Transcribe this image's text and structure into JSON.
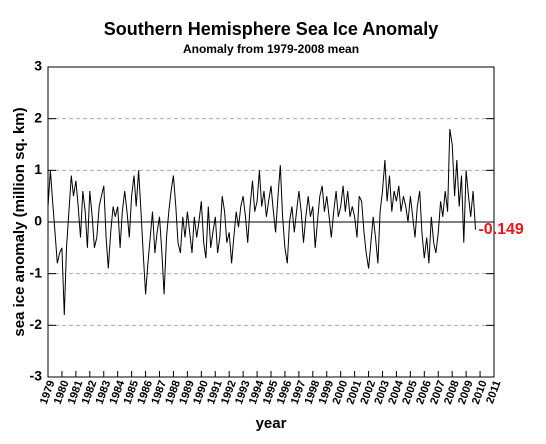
{
  "chart_data": {
    "type": "line",
    "title": "Southern Hemisphere Sea Ice Anomaly",
    "subtitle": "Anomaly from 1979-2008 mean",
    "x_label": "year",
    "y_label": "sea ice anomaly (million sq. km)",
    "annotation": "-0.149",
    "annotation_color": "#e8161b",
    "xlim": [
      1979,
      2011
    ],
    "xticks": [
      1979,
      1980,
      1981,
      1982,
      1983,
      1984,
      1985,
      1986,
      1987,
      1988,
      1989,
      1990,
      1991,
      1992,
      1993,
      1994,
      1995,
      1996,
      1997,
      1998,
      1999,
      2000,
      2001,
      2002,
      2003,
      2004,
      2005,
      2006,
      2007,
      2008,
      2009,
      2010,
      2011
    ],
    "ylim": [
      -3,
      3
    ],
    "yticks": [
      -3,
      -2,
      -1,
      0,
      1,
      2,
      3
    ],
    "grid": true,
    "series": [
      {
        "color": "#000000",
        "x": [
          1979.0,
          1979.17,
          1979.33,
          1979.5,
          1979.67,
          1979.83,
          1980.0,
          1980.17,
          1980.33,
          1980.5,
          1980.67,
          1980.83,
          1981.0,
          1981.17,
          1981.33,
          1981.5,
          1981.67,
          1981.83,
          1982.0,
          1982.17,
          1982.33,
          1982.5,
          1982.67,
          1982.83,
          1983.0,
          1983.17,
          1983.33,
          1983.5,
          1983.67,
          1983.83,
          1984.0,
          1984.17,
          1984.33,
          1984.5,
          1984.67,
          1984.83,
          1985.0,
          1985.17,
          1985.33,
          1985.5,
          1985.67,
          1985.83,
          1986.0,
          1986.17,
          1986.33,
          1986.5,
          1986.67,
          1986.83,
          1987.0,
          1987.17,
          1987.33,
          1987.5,
          1987.67,
          1987.83,
          1988.0,
          1988.17,
          1988.33,
          1988.5,
          1988.67,
          1988.83,
          1989.0,
          1989.17,
          1989.33,
          1989.5,
          1989.67,
          1989.83,
          1990.0,
          1990.17,
          1990.33,
          1990.5,
          1990.67,
          1990.83,
          1991.0,
          1991.17,
          1991.33,
          1991.5,
          1991.67,
          1991.83,
          1992.0,
          1992.17,
          1992.33,
          1992.5,
          1992.67,
          1992.83,
          1993.0,
          1993.17,
          1993.33,
          1993.5,
          1993.67,
          1993.83,
          1994.0,
          1994.17,
          1994.33,
          1994.5,
          1994.67,
          1994.83,
          1995.0,
          1995.17,
          1995.33,
          1995.5,
          1995.67,
          1995.83,
          1996.0,
          1996.17,
          1996.33,
          1996.5,
          1996.67,
          1996.83,
          1997.0,
          1997.17,
          1997.33,
          1997.5,
          1997.67,
          1997.83,
          1998.0,
          1998.17,
          1998.33,
          1998.5,
          1998.67,
          1998.83,
          1999.0,
          1999.17,
          1999.33,
          1999.5,
          1999.67,
          1999.83,
          2000.0,
          2000.17,
          2000.33,
          2000.5,
          2000.67,
          2000.83,
          2001.0,
          2001.17,
          2001.33,
          2001.5,
          2001.67,
          2001.83,
          2002.0,
          2002.17,
          2002.33,
          2002.5,
          2002.67,
          2002.83,
          2003.0,
          2003.17,
          2003.33,
          2003.5,
          2003.67,
          2003.83,
          2004.0,
          2004.17,
          2004.33,
          2004.5,
          2004.67,
          2004.83,
          2005.0,
          2005.17,
          2005.33,
          2005.5,
          2005.67,
          2005.83,
          2006.0,
          2006.17,
          2006.33,
          2006.5,
          2006.67,
          2006.83,
          2007.0,
          2007.17,
          2007.33,
          2007.5,
          2007.67,
          2007.83,
          2008.0,
          2008.17,
          2008.33,
          2008.5,
          2008.67,
          2008.83,
          2009.0,
          2009.17,
          2009.33,
          2009.5,
          2009.67
        ],
        "values": [
          0.3,
          1.0,
          0.4,
          -0.2,
          -0.8,
          -0.6,
          -0.5,
          -1.8,
          -0.5,
          0.2,
          0.9,
          0.5,
          0.8,
          0.3,
          -0.3,
          0.6,
          0.2,
          -0.5,
          0.6,
          0.1,
          -0.5,
          -0.3,
          0.3,
          0.5,
          0.7,
          -0.3,
          -0.9,
          -0.2,
          0.3,
          0.1,
          0.3,
          -0.5,
          0.2,
          0.6,
          0.2,
          -0.3,
          0.5,
          0.9,
          0.3,
          1.0,
          0.2,
          -0.6,
          -1.4,
          -0.8,
          -0.3,
          0.2,
          -0.6,
          -0.2,
          0.1,
          -0.6,
          -1.4,
          -0.3,
          0.2,
          0.6,
          0.9,
          0.3,
          -0.4,
          -0.6,
          0.1,
          -0.3,
          0.2,
          -0.2,
          -0.6,
          0.1,
          -0.3,
          0.0,
          0.4,
          -0.4,
          -0.7,
          0.3,
          -0.5,
          -0.2,
          0.1,
          -0.6,
          -0.3,
          0.5,
          0.2,
          -0.4,
          -0.2,
          -0.8,
          -0.3,
          0.2,
          -0.1,
          0.3,
          0.5,
          0.1,
          -0.4,
          0.3,
          0.8,
          0.2,
          0.4,
          1.0,
          0.3,
          0.6,
          0.1,
          0.4,
          0.7,
          0.2,
          -0.2,
          0.5,
          1.1,
          0.1,
          -0.5,
          -0.8,
          0.0,
          0.3,
          -0.2,
          0.2,
          0.6,
          0.2,
          -0.4,
          0.1,
          0.5,
          0.1,
          0.3,
          -0.5,
          0.0,
          0.5,
          0.7,
          0.2,
          0.5,
          0.1,
          -0.3,
          0.2,
          0.6,
          0.1,
          0.3,
          0.7,
          0.2,
          0.6,
          0.1,
          0.3,
          0.1,
          -0.3,
          0.5,
          0.4,
          -0.2,
          -0.6,
          -0.9,
          -0.4,
          0.1,
          -0.3,
          -0.8,
          0.2,
          0.6,
          1.2,
          0.4,
          0.9,
          0.2,
          0.6,
          0.4,
          0.7,
          0.2,
          0.5,
          0.3,
          0.0,
          0.5,
          0.1,
          -0.3,
          0.3,
          0.6,
          -0.2,
          -0.7,
          -0.3,
          -0.8,
          0.1,
          -0.4,
          -0.6,
          -0.2,
          0.4,
          0.1,
          0.6,
          0.2,
          1.8,
          1.5,
          0.5,
          1.2,
          0.3,
          0.9,
          -0.4,
          1.0,
          0.5,
          0.1,
          0.6,
          -0.149
        ]
      }
    ]
  }
}
